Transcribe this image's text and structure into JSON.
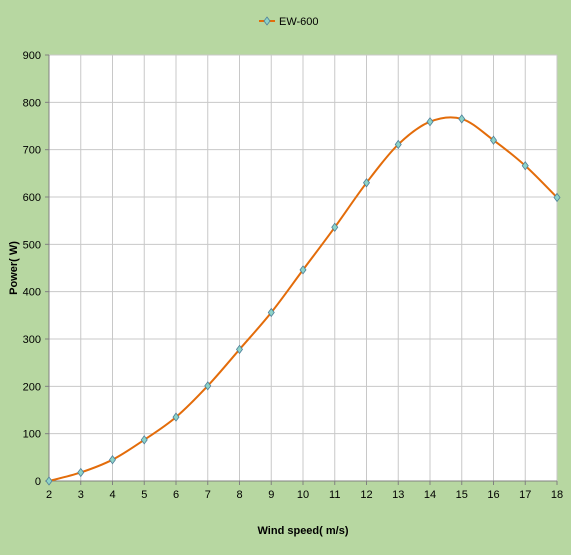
{
  "chart_data": {
    "type": "line",
    "title": "",
    "xlabel": "Wind speed( m/s)",
    "ylabel": "Power( W)",
    "xlim": [
      2,
      18
    ],
    "ylim": [
      0,
      900
    ],
    "x_ticks": [
      "2",
      "3",
      "4",
      "5",
      "6",
      "7",
      "8",
      "9",
      "10",
      "11",
      "12",
      "13",
      "14",
      "15",
      "16",
      "17",
      "18"
    ],
    "y_ticks": [
      "0",
      "100",
      "200",
      "300",
      "400",
      "500",
      "600",
      "700",
      "800",
      "900"
    ],
    "grid": true,
    "legend_position": "top-center",
    "series": [
      {
        "name": "EW-600",
        "color": "#e36c0a",
        "marker": "diamond",
        "marker_color": "#8dd3c7",
        "smooth": true,
        "x": [
          2,
          3,
          4,
          5,
          6,
          7,
          8,
          9,
          10,
          11,
          12,
          13,
          14,
          15,
          16,
          17,
          18
        ],
        "y": [
          0,
          18,
          45,
          87,
          135,
          201,
          278,
          356,
          446,
          536,
          630,
          711,
          759,
          765,
          720,
          666,
          599
        ]
      }
    ]
  },
  "colors": {
    "background": "#b7d7a1",
    "plot_area": "#ffffff",
    "grid": "#c8c8c8",
    "line": "#e36c0a",
    "marker_fill": "#8dd3c7",
    "marker_stroke": "#4f7f9a"
  }
}
